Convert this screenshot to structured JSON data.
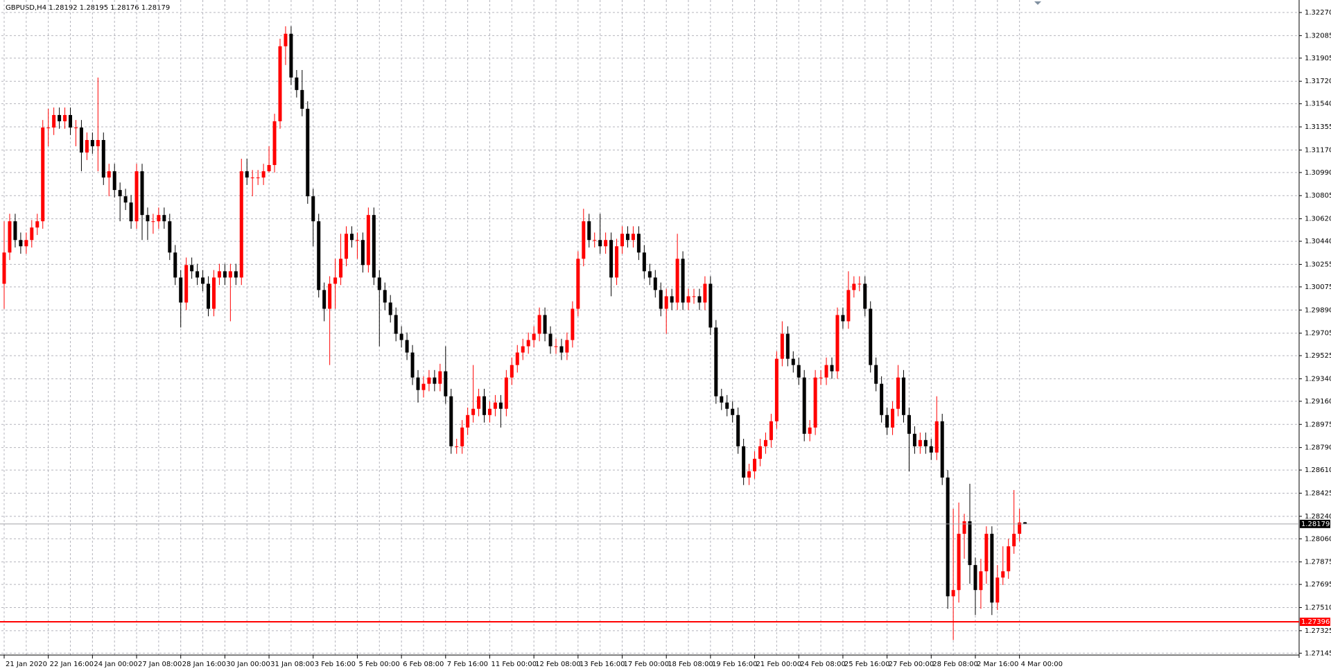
{
  "chart_data": {
    "type": "candlestick",
    "title": "GBPUSD,H4  1.28192 1.28195 1.28176 1.28179",
    "categories": [
      "21 Jan 2020",
      null,
      null,
      null,
      null,
      null,
      null,
      null,
      "22 Jan 16:00",
      null,
      null,
      null,
      null,
      null,
      null,
      null,
      "24 Jan 00:00",
      null,
      null,
      null,
      null,
      null,
      null,
      null,
      "27 Jan 08:00",
      null,
      null,
      null,
      null,
      null,
      null,
      null,
      "28 Jan 16:00",
      null,
      null,
      null,
      null,
      null,
      null,
      null,
      "30 Jan 00:00",
      null,
      null,
      null,
      null,
      null,
      null,
      null,
      "31 Jan 08:00",
      null,
      null,
      null,
      null,
      null,
      null,
      null,
      "3 Feb 16:00",
      null,
      null,
      null,
      null,
      null,
      null,
      null,
      "5 Feb 00:00",
      null,
      null,
      null,
      null,
      null,
      null,
      null,
      "6 Feb 08:00",
      null,
      null,
      null,
      null,
      null,
      null,
      null,
      "7 Feb 16:00",
      null,
      null,
      null,
      null,
      null,
      null,
      null,
      "11 Feb 00:00",
      null,
      null,
      null,
      null,
      null,
      null,
      null,
      "12 Feb 08:00",
      null,
      null,
      null,
      null,
      null,
      null,
      null,
      "13 Feb 16:00",
      null,
      null,
      null,
      null,
      null,
      null,
      null,
      "17 Feb 00:00",
      null,
      null,
      null,
      null,
      null,
      null,
      null,
      "18 Feb 08:00",
      null,
      null,
      null,
      null,
      null,
      null,
      null,
      "19 Feb 16:00",
      null,
      null,
      null,
      null,
      null,
      null,
      null,
      "21 Feb 00:00",
      null,
      null,
      null,
      null,
      null,
      null,
      null,
      "24 Feb 08:00",
      null,
      null,
      null,
      null,
      null,
      null,
      null,
      "25 Feb 16:00",
      null,
      null,
      null,
      null,
      null,
      null,
      null,
      "27 Feb 00:00",
      null,
      null,
      null,
      null,
      null,
      null,
      null,
      "28 Feb 08:00",
      null,
      null,
      null,
      null,
      null,
      null,
      null,
      "2 Mar 16:00",
      null,
      null,
      null,
      null,
      null,
      null,
      null,
      "4 Mar 00:00",
      null
    ],
    "open": [
      1.301,
      1.3035,
      1.306,
      1.3045,
      1.304,
      1.3045,
      1.3055,
      1.306,
      1.3135,
      1.3135,
      1.3145,
      1.314,
      1.3145,
      1.3135,
      1.3135,
      1.3115,
      1.3125,
      1.312,
      1.3125,
      1.3095,
      1.31,
      1.3085,
      1.308,
      1.3075,
      1.306,
      1.31,
      1.3065,
      1.306,
      1.306,
      1.3065,
      1.306,
      1.3035,
      1.3015,
      1.2995,
      1.3025,
      1.302,
      1.3015,
      1.301,
      1.299,
      1.3015,
      1.302,
      1.3015,
      1.302,
      1.3015,
      1.31,
      1.3095,
      1.3095,
      1.3095,
      1.31,
      1.3105,
      1.314,
      1.32,
      1.321,
      1.3175,
      1.3165,
      1.315,
      1.308,
      1.306,
      1.3005,
      1.299,
      1.301,
      1.3015,
      1.303,
      1.305,
      1.3045,
      1.3045,
      1.3025,
      1.3065,
      1.3015,
      1.3005,
      1.2995,
      1.2985,
      1.297,
      1.2965,
      1.2955,
      1.2935,
      1.2925,
      1.293,
      1.2935,
      1.293,
      1.294,
      1.292,
      1.288,
      1.288,
      1.2895,
      1.2905,
      1.291,
      1.292,
      1.2905,
      1.291,
      1.2915,
      1.291,
      1.2935,
      1.2945,
      1.2955,
      1.296,
      1.2965,
      1.297,
      1.2985,
      1.297,
      1.296,
      1.296,
      1.2955,
      1.2965,
      1.299,
      1.303,
      1.306,
      1.3045,
      1.3045,
      1.304,
      1.3045,
      1.3015,
      1.304,
      1.305,
      1.3045,
      1.305,
      1.3035,
      1.302,
      1.3015,
      1.3005,
      1.299,
      1.3,
      1.2995,
      1.303,
      1.2995,
      1.3,
      1.3,
      1.2995,
      1.301,
      1.2975,
      1.292,
      1.2915,
      1.291,
      1.2905,
      1.288,
      1.2855,
      1.286,
      1.287,
      1.288,
      1.2885,
      1.29,
      1.295,
      1.297,
      1.295,
      1.2945,
      1.2935,
      1.289,
      1.2895,
      1.2935,
      1.2935,
      1.2945,
      1.294,
      1.2985,
      1.298,
      1.3005,
      1.301,
      1.301,
      1.299,
      1.2945,
      1.293,
      1.2905,
      1.2895,
      1.291,
      1.2935,
      1.2905,
      1.289,
      1.288,
      1.2885,
      1.288,
      1.2875,
      1.29,
      1.2855,
      1.276,
      1.2765,
      1.281,
      1.282,
      1.2785,
      1.2765,
      1.278,
      1.281,
      1.2755,
      1.2775,
      1.278,
      1.28,
      1.281,
      1.28192
    ],
    "high": [
      1.306,
      1.3066,
      1.3066,
      1.3051,
      1.3051,
      1.3061,
      1.3066,
      1.3141,
      1.315,
      1.3151,
      1.3151,
      1.3151,
      1.3151,
      1.3141,
      1.3141,
      1.3131,
      1.3131,
      1.3175,
      1.3131,
      1.3106,
      1.3106,
      1.3091,
      1.3086,
      1.3081,
      1.3106,
      1.3106,
      1.3071,
      1.3066,
      1.3071,
      1.3071,
      1.3066,
      1.3041,
      1.3021,
      1.3031,
      1.3031,
      1.3026,
      1.3021,
      1.3016,
      1.3021,
      1.3026,
      1.3026,
      1.3026,
      1.3026,
      1.311,
      1.311,
      1.3101,
      1.3101,
      1.3106,
      1.312,
      1.3146,
      1.3206,
      1.3216,
      1.3216,
      1.3181,
      1.3181,
      1.3156,
      1.3086,
      1.3066,
      1.3011,
      1.3016,
      1.303,
      1.305,
      1.3056,
      1.3056,
      1.3051,
      1.3051,
      1.3071,
      1.3071,
      1.3021,
      1.3011,
      1.3001,
      1.2991,
      1.2976,
      1.2971,
      1.2961,
      1.2941,
      1.2936,
      1.2941,
      1.2941,
      1.2946,
      1.296,
      1.2926,
      1.2886,
      1.2901,
      1.2911,
      1.2945,
      1.2926,
      1.2926,
      1.2916,
      1.2921,
      1.2921,
      1.2941,
      1.2951,
      1.2961,
      1.2966,
      1.2971,
      1.2976,
      1.2991,
      1.2991,
      1.2976,
      1.2966,
      1.2966,
      1.2971,
      1.2996,
      1.3036,
      1.307,
      1.3066,
      1.3051,
      1.3066,
      1.3051,
      1.3051,
      1.3046,
      1.3056,
      1.3056,
      1.3056,
      1.3056,
      1.3041,
      1.3026,
      1.3021,
      1.3011,
      1.3006,
      1.3006,
      1.305,
      1.3036,
      1.3006,
      1.3006,
      1.3006,
      1.3016,
      1.3016,
      1.2981,
      1.2926,
      1.2921,
      1.2916,
      1.2911,
      1.2886,
      1.2866,
      1.2876,
      1.2886,
      1.2891,
      1.2906,
      1.2956,
      1.298,
      1.2976,
      1.2956,
      1.2951,
      1.2941,
      1.2901,
      1.2941,
      1.2941,
      1.2951,
      1.2951,
      1.2991,
      1.2991,
      1.302,
      1.3016,
      1.3016,
      1.3016,
      1.2996,
      1.2951,
      1.2936,
      1.2911,
      1.2916,
      1.2945,
      1.2941,
      1.2911,
      1.2896,
      1.2891,
      1.2891,
      1.2886,
      1.292,
      1.2906,
      1.2861,
      1.283,
      1.2835,
      1.2826,
      1.285,
      1.2791,
      1.279,
      1.2816,
      1.2816,
      1.2785,
      1.28,
      1.2806,
      1.2845,
      1.283,
      1.28195
    ],
    "low": [
      1.299,
      1.3029,
      1.3039,
      1.3034,
      1.3034,
      1.3039,
      1.3049,
      1.3054,
      1.312,
      1.3129,
      1.3134,
      1.3134,
      1.3129,
      1.312,
      1.31,
      1.3109,
      1.3114,
      1.31,
      1.3089,
      1.308,
      1.3079,
      1.306,
      1.3069,
      1.3054,
      1.3054,
      1.3045,
      1.3045,
      1.305,
      1.3054,
      1.3054,
      1.3029,
      1.3009,
      1.2975,
      1.2989,
      1.3014,
      1.3009,
      1.3004,
      1.2984,
      1.2984,
      1.3009,
      1.3009,
      1.298,
      1.3009,
      1.3009,
      1.3089,
      1.308,
      1.3089,
      1.3089,
      1.3099,
      1.3099,
      1.3134,
      1.3185,
      1.3169,
      1.3159,
      1.3144,
      1.3074,
      1.304,
      1.2999,
      1.298,
      1.2945,
      1.299,
      1.3009,
      1.3024,
      1.3039,
      1.303,
      1.3019,
      1.3019,
      1.3009,
      1.296,
      1.2989,
      1.2979,
      1.2964,
      1.2959,
      1.2949,
      1.2929,
      1.2915,
      1.2919,
      1.2924,
      1.2924,
      1.2924,
      1.2914,
      1.2874,
      1.2874,
      1.2874,
      1.2889,
      1.2899,
      1.2904,
      1.2899,
      1.2899,
      1.2904,
      1.2895,
      1.2904,
      1.2929,
      1.2939,
      1.2949,
      1.2954,
      1.2959,
      1.2964,
      1.2964,
      1.2954,
      1.2954,
      1.2949,
      1.2949,
      1.2959,
      1.2984,
      1.3024,
      1.3039,
      1.3039,
      1.3034,
      1.3034,
      1.3,
      1.3009,
      1.3034,
      1.3039,
      1.3039,
      1.3029,
      1.3014,
      1.3009,
      1.2999,
      1.2984,
      1.297,
      1.2989,
      1.2989,
      1.2989,
      1.2989,
      1.2994,
      1.2989,
      1.2989,
      1.2969,
      1.2914,
      1.2909,
      1.2904,
      1.2899,
      1.2874,
      1.2849,
      1.2849,
      1.2854,
      1.2864,
      1.2874,
      1.2879,
      1.2894,
      1.2944,
      1.2944,
      1.2939,
      1.2929,
      1.2884,
      1.2884,
      1.2889,
      1.2929,
      1.2929,
      1.2934,
      1.2934,
      1.2974,
      1.2974,
      1.2999,
      1.3004,
      1.2984,
      1.2939,
      1.2924,
      1.2899,
      1.2889,
      1.2889,
      1.2904,
      1.2899,
      1.286,
      1.2874,
      1.2874,
      1.2874,
      1.2869,
      1.2869,
      1.2849,
      1.275,
      1.2725,
      1.2755,
      1.279,
      1.277,
      1.2745,
      1.275,
      1.277,
      1.2745,
      1.2749,
      1.2769,
      1.2774,
      1.2794,
      1.2804,
      1.28176
    ],
    "close": [
      1.3035,
      1.306,
      1.3045,
      1.304,
      1.3045,
      1.3055,
      1.306,
      1.3135,
      1.3135,
      1.3145,
      1.314,
      1.3145,
      1.3135,
      1.3135,
      1.3115,
      1.3125,
      1.312,
      1.3125,
      1.3095,
      1.31,
      1.3085,
      1.308,
      1.3075,
      1.306,
      1.31,
      1.3065,
      1.306,
      1.306,
      1.3065,
      1.306,
      1.3035,
      1.3015,
      1.2995,
      1.3025,
      1.302,
      1.3015,
      1.301,
      1.299,
      1.3015,
      1.302,
      1.3015,
      1.302,
      1.3015,
      1.31,
      1.3095,
      1.3095,
      1.3095,
      1.31,
      1.3105,
      1.314,
      1.32,
      1.321,
      1.3175,
      1.3165,
      1.315,
      1.308,
      1.306,
      1.3005,
      1.299,
      1.301,
      1.3015,
      1.303,
      1.305,
      1.3045,
      1.3045,
      1.3025,
      1.3065,
      1.3015,
      1.3005,
      1.2995,
      1.2985,
      1.297,
      1.2965,
      1.2955,
      1.2935,
      1.2925,
      1.293,
      1.2935,
      1.293,
      1.294,
      1.292,
      1.288,
      1.288,
      1.2895,
      1.2905,
      1.291,
      1.292,
      1.2905,
      1.291,
      1.2915,
      1.291,
      1.2935,
      1.2945,
      1.2955,
      1.296,
      1.2965,
      1.297,
      1.2985,
      1.297,
      1.296,
      1.296,
      1.2955,
      1.2965,
      1.299,
      1.303,
      1.306,
      1.3045,
      1.3045,
      1.304,
      1.3045,
      1.3015,
      1.304,
      1.305,
      1.3045,
      1.305,
      1.3035,
      1.302,
      1.3015,
      1.3005,
      1.299,
      1.3,
      1.2995,
      1.303,
      1.2995,
      1.3,
      1.3,
      1.2995,
      1.301,
      1.2975,
      1.292,
      1.2915,
      1.291,
      1.2905,
      1.288,
      1.2855,
      1.286,
      1.287,
      1.288,
      1.2885,
      1.29,
      1.295,
      1.297,
      1.295,
      1.2945,
      1.2935,
      1.289,
      1.2895,
      1.2935,
      1.2935,
      1.2945,
      1.294,
      1.2985,
      1.298,
      1.3005,
      1.301,
      1.301,
      1.299,
      1.2945,
      1.293,
      1.2905,
      1.2895,
      1.291,
      1.2935,
      1.2905,
      1.289,
      1.288,
      1.2885,
      1.288,
      1.2875,
      1.29,
      1.2855,
      1.276,
      1.2765,
      1.281,
      1.282,
      1.2785,
      1.2765,
      1.278,
      1.281,
      1.2755,
      1.2775,
      1.278,
      1.28,
      1.281,
      1.2819,
      1.28179
    ],
    "up_color": "#ff0000",
    "down_color": "#000000",
    "ylim": [
      1.2713,
      1.3237
    ],
    "yticks": [
      {
        "value": 1.3227,
        "label": "1.32270"
      },
      1.32085,
      1.31905,
      {
        "value": 1.3172,
        "label": "1.31720"
      },
      {
        "value": 1.3154,
        "label": "1.31540"
      },
      1.31355,
      {
        "value": 1.3117,
        "label": "1.31170"
      },
      {
        "value": 1.3099,
        "label": "1.30990"
      },
      1.30805,
      {
        "value": 1.3062,
        "label": "1.30620"
      },
      {
        "value": 1.3044,
        "label": "1.30440"
      },
      1.30255,
      1.30075,
      {
        "value": 1.2989,
        "label": "1.29890"
      },
      1.29705,
      1.29525,
      {
        "value": 1.2934,
        "label": "1.29340"
      },
      {
        "value": 1.2916,
        "label": "1.29160"
      },
      1.28975,
      {
        "value": 1.2879,
        "label": "1.28790"
      },
      {
        "value": 1.2861,
        "label": "1.28610"
      },
      1.28425,
      {
        "value": 1.2824,
        "label": "1.28240"
      },
      {
        "value": 1.2806,
        "label": "1.28060"
      },
      1.27875,
      1.27695,
      {
        "value": 1.2751,
        "label": "1.27510"
      },
      1.27325,
      1.27145
    ],
    "grid": true,
    "hline": {
      "value": 1.27396,
      "color": "#ff0000"
    },
    "last_price": 1.28179
  }
}
